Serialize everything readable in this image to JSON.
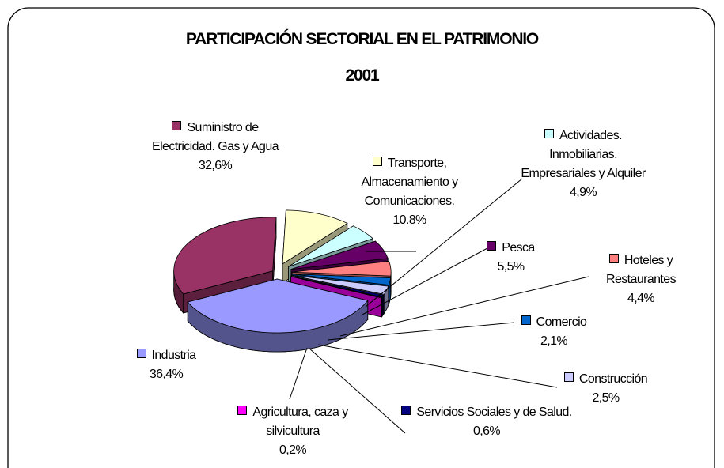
{
  "chart_data": {
    "type": "pie",
    "title": "PARTICIPACIÓN SECTORIAL EN EL PATRIMONIO",
    "subtitle": "2001",
    "categories": [
      "Transporte, Almacenamiento y Comunicaciones.",
      "Actividades. Inmobiliarias. Empresariales y Alquiler",
      "Pesca",
      "Hoteles y Restaurantes",
      "Comercio",
      "Construcción",
      "Servicios Sociales y de Salud.",
      "Agricultura, caza y silvicultura",
      "Industria",
      "Suministro de Electricidad. Gas y Agua"
    ],
    "values": [
      10.8,
      4.9,
      5.5,
      4.4,
      2.1,
      2.5,
      0.6,
      0.2,
      36.4,
      32.6
    ],
    "value_labels": [
      "10.8%",
      "4,9%",
      "5,5%",
      "4,4%",
      "2,1%",
      "2,5%",
      "0,6%",
      "0,2%",
      "36,4%",
      "32,6%"
    ],
    "colors": [
      "#ffffcc",
      "#ccffff",
      "#660066",
      "#ff8080",
      "#0066cc",
      "#ccccff",
      "#000080",
      "#ff00ff",
      "#9999ff",
      "#993366"
    ]
  }
}
